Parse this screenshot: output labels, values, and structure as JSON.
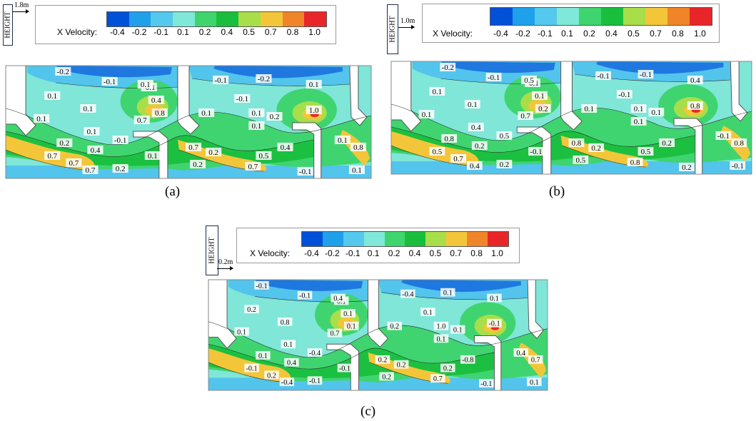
{
  "legend": {
    "label": "X Velocity:",
    "ticks": [
      "-0.4",
      "-0.2",
      "-0.1",
      "0.1",
      "0.2",
      "0.4",
      "0.5",
      "0.7",
      "0.8",
      "1.0"
    ],
    "colors": [
      "#0050d8",
      "#1fa0ea",
      "#55c8ee",
      "#7fe8d8",
      "#3ed46e",
      "#19bf3c",
      "#a8de4a",
      "#f3c63a",
      "#f08428",
      "#e8262a"
    ]
  },
  "palette": {
    "neg_strong": "#1e78e0",
    "neg": "#53c4ec",
    "neutral": "#7fe6d8",
    "weak": "#3fd470",
    "mid": "#1cc040",
    "high": "#a8de4a",
    "high2": "#f3c63a",
    "peak": "#e8262a",
    "wall": "#ffffff",
    "wall_stroke": "#555555"
  },
  "panels": [
    {
      "id": "a",
      "height_text": "HEIGHT",
      "scale_text": "1.8m",
      "caption": "(a)",
      "labels": [
        "-0.2",
        "-0.1",
        "0.1",
        "-0.1",
        "0.1",
        "0.4",
        "0.8",
        "0.7",
        "0.1",
        "0.1",
        "0.1",
        "0.2",
        "0.4",
        "-0.1",
        "0.7",
        "0.7",
        "0.7",
        "0.1",
        "0.2",
        "-0.1",
        "-0.2",
        "0.1",
        "-0.1",
        "0.1",
        "0.1",
        "0.2",
        "1.0",
        "0.1",
        "0.7",
        "0.2",
        "0.4",
        "0.7",
        "0.5",
        "0.2",
        "-0.1",
        "0.1",
        "0.8",
        "0.1"
      ]
    },
    {
      "id": "b",
      "height_text": "HEIGHT",
      "scale_text": "1.0m",
      "caption": "(b)",
      "labels": [
        "-0.2",
        "-0.1",
        "0.1",
        "-0.1",
        "0.5",
        "0.1",
        "0.2",
        "0.7",
        "0.1",
        "0.1",
        "0.4",
        "0.8",
        "0.2",
        "0.5",
        "0.5",
        "0.7",
        "0.4",
        "-0.1",
        "0.2",
        "-0.1",
        "-0.1",
        "0.4",
        "-0.1",
        "0.1",
        "0.1",
        "0.1",
        "0.8",
        "0.1",
        "0.8",
        "0.2",
        "0.2",
        "0.8",
        "0.5",
        "0.5",
        "0.2",
        "-0.1",
        "0.8",
        "-0.1"
      ]
    },
    {
      "id": "c",
      "height_text": "HEIGHT",
      "scale_text": "0.2m",
      "caption": "(c)",
      "labels": [
        "-0.1",
        "-0.1",
        "0.2",
        "0.1",
        "0.4",
        "0.1",
        "0.1",
        "0.7",
        "0.1",
        "0.8",
        "0.1",
        "0.1",
        "0.4",
        "-0.4",
        "-0.1",
        "0.2",
        "-0.4",
        "-0.1",
        "-0.1",
        "-0.4",
        "0.1",
        "0.1",
        "0.1",
        "0.2",
        "1.0",
        "0.1",
        "-0.1",
        "0.1",
        "0.2",
        "0.2",
        "-0.8",
        "0.7",
        "0.2",
        "0.2",
        "-0.1",
        "0.4",
        "0.7",
        "0.1"
      ]
    }
  ]
}
